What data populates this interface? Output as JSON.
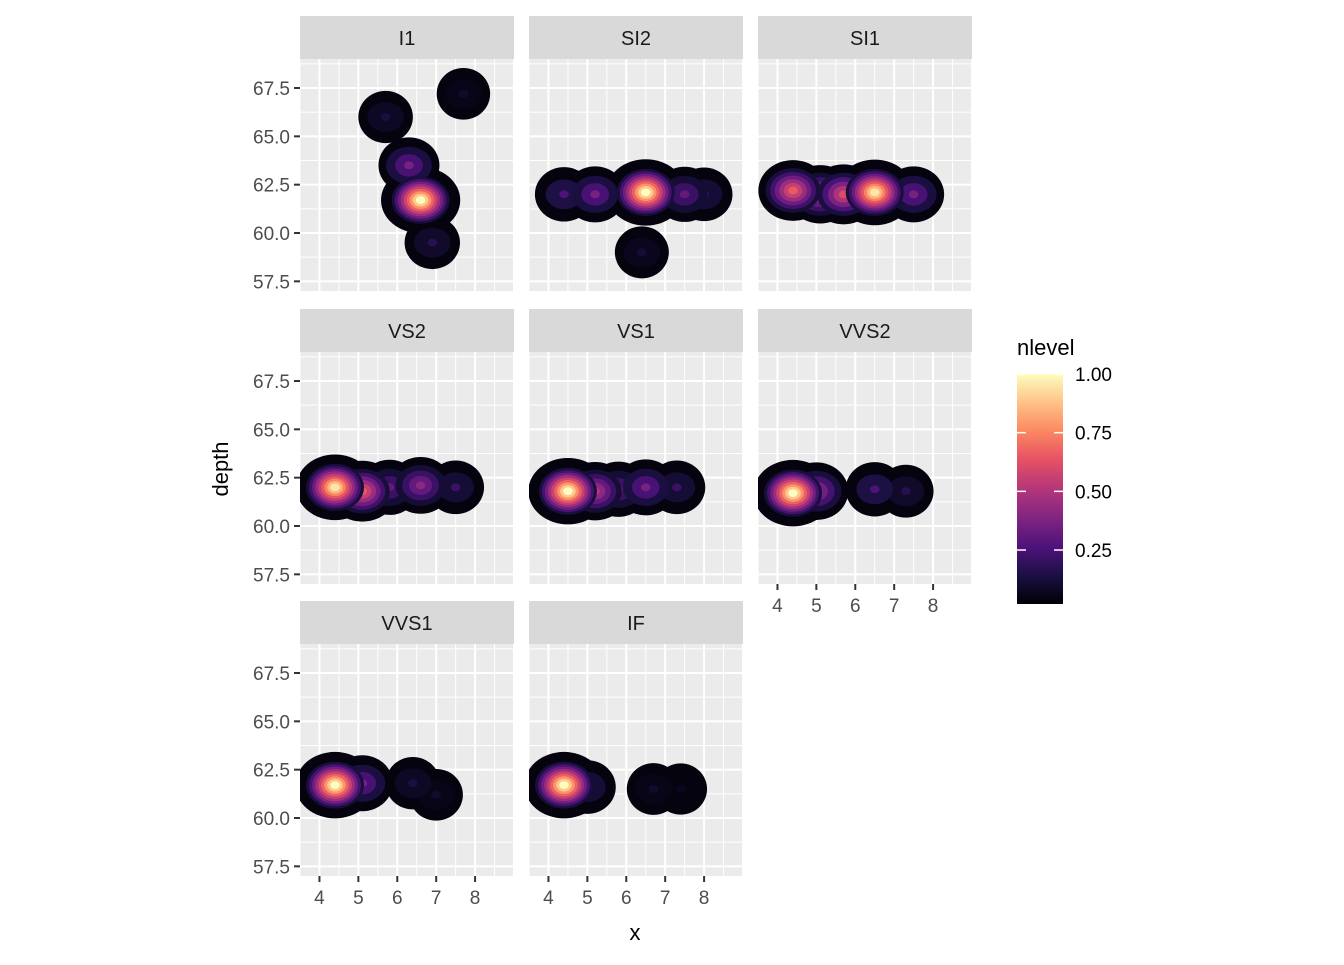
{
  "chart_data": {
    "type": "heatmap",
    "subtype": "faceted 2D density (filled contours)",
    "xlabel": "x",
    "ylabel": "depth",
    "xlim": [
      3.5,
      9.0
    ],
    "ylim": [
      57.0,
      69.0
    ],
    "x_ticks": [
      4,
      5,
      6,
      7,
      8
    ],
    "y_ticks": [
      57.5,
      60.0,
      62.5,
      65.0,
      67.5
    ],
    "y_tick_labels": [
      "57.5",
      "60.0",
      "62.5",
      "65.0",
      "67.5"
    ],
    "facet_layout": {
      "ncol": 3,
      "nrow": 3
    },
    "panel_background": "#ebebeb",
    "grid": true,
    "legend": {
      "title": "nlevel",
      "position": "right",
      "breaks": [
        "1.00",
        "0.75",
        "0.50",
        "0.25"
      ],
      "break_values": [
        1.0,
        0.75,
        0.5,
        0.25
      ],
      "range": [
        0.02,
        1.0
      ],
      "palette": "magma",
      "colors": [
        "#000004",
        "#1c1044",
        "#4f127b",
        "#812581",
        "#b5367a",
        "#e55064",
        "#fb8761",
        "#fec287",
        "#fcfdbf"
      ]
    },
    "facets": [
      {
        "label": "I1",
        "peaks": [
          {
            "x": 6.6,
            "y": 61.7,
            "level": 1.0
          },
          {
            "x": 6.3,
            "y": 63.5,
            "level": 0.35
          },
          {
            "x": 5.7,
            "y": 66.0,
            "level": 0.12
          },
          {
            "x": 7.7,
            "y": 67.2,
            "level": 0.08
          },
          {
            "x": 6.9,
            "y": 59.5,
            "level": 0.15
          }
        ]
      },
      {
        "label": "SI2",
        "peaks": [
          {
            "x": 6.5,
            "y": 62.1,
            "level": 1.0
          },
          {
            "x": 5.2,
            "y": 62.0,
            "level": 0.35
          },
          {
            "x": 4.4,
            "y": 62.0,
            "level": 0.25
          },
          {
            "x": 7.5,
            "y": 62.0,
            "level": 0.3
          },
          {
            "x": 8.0,
            "y": 62.0,
            "level": 0.2
          },
          {
            "x": 6.4,
            "y": 59.0,
            "level": 0.1
          }
        ]
      },
      {
        "label": "SI1",
        "peaks": [
          {
            "x": 6.5,
            "y": 62.1,
            "level": 0.95
          },
          {
            "x": 4.4,
            "y": 62.2,
            "level": 0.65
          },
          {
            "x": 5.7,
            "y": 62.0,
            "level": 0.6
          },
          {
            "x": 5.1,
            "y": 62.0,
            "level": 0.5
          },
          {
            "x": 7.5,
            "y": 62.0,
            "level": 0.35
          }
        ]
      },
      {
        "label": "VS2",
        "peaks": [
          {
            "x": 4.4,
            "y": 62.0,
            "level": 0.95
          },
          {
            "x": 5.1,
            "y": 61.8,
            "level": 0.65
          },
          {
            "x": 6.6,
            "y": 62.1,
            "level": 0.4
          },
          {
            "x": 5.8,
            "y": 62.0,
            "level": 0.3
          },
          {
            "x": 7.5,
            "y": 62.0,
            "level": 0.2
          }
        ]
      },
      {
        "label": "VS1",
        "peaks": [
          {
            "x": 4.5,
            "y": 61.8,
            "level": 1.0
          },
          {
            "x": 5.2,
            "y": 61.8,
            "level": 0.5
          },
          {
            "x": 6.5,
            "y": 62.0,
            "level": 0.35
          },
          {
            "x": 5.8,
            "y": 61.9,
            "level": 0.3
          },
          {
            "x": 7.3,
            "y": 62.0,
            "level": 0.2
          }
        ]
      },
      {
        "label": "VVS2",
        "peaks": [
          {
            "x": 4.4,
            "y": 61.7,
            "level": 1.0
          },
          {
            "x": 5.0,
            "y": 61.8,
            "level": 0.45
          },
          {
            "x": 6.5,
            "y": 61.9,
            "level": 0.25
          },
          {
            "x": 7.3,
            "y": 61.8,
            "level": 0.15
          }
        ]
      },
      {
        "label": "VVS1",
        "peaks": [
          {
            "x": 4.4,
            "y": 61.7,
            "level": 1.0
          },
          {
            "x": 5.1,
            "y": 61.8,
            "level": 0.35
          },
          {
            "x": 6.4,
            "y": 61.8,
            "level": 0.12
          },
          {
            "x": 7.0,
            "y": 61.2,
            "level": 0.08
          }
        ]
      },
      {
        "label": "IF",
        "peaks": [
          {
            "x": 4.4,
            "y": 61.7,
            "level": 1.0
          },
          {
            "x": 5.0,
            "y": 61.6,
            "level": 0.2
          },
          {
            "x": 6.7,
            "y": 61.5,
            "level": 0.08
          },
          {
            "x": 7.4,
            "y": 61.5,
            "level": 0.05
          }
        ]
      }
    ]
  }
}
